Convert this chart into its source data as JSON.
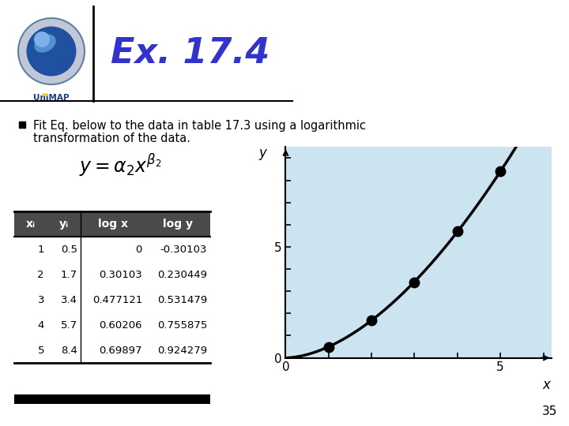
{
  "title": "Ex. 17.4",
  "title_color": "#3333cc",
  "bg_color": "#ffffff",
  "bullet_text_line1": "Fit Eq. below to the data in table 17.3 using a logarithmic",
  "bullet_text_line2": "transformation of the data.",
  "row_format_str": [
    [
      "1",
      "0.5",
      "0",
      "-0.30103"
    ],
    [
      "2",
      "1.7",
      "0.30103",
      "0.230449"
    ],
    [
      "3",
      "3.4",
      "0.477121",
      "0.531479"
    ],
    [
      "4",
      "5.7",
      "0.60206",
      "0.755875"
    ],
    [
      "5",
      "8.4",
      "0.69897",
      "0.924279"
    ]
  ],
  "data_x": [
    1,
    2,
    3,
    4,
    5
  ],
  "data_y": [
    0.5,
    1.7,
    3.4,
    5.7,
    8.4
  ],
  "plot_bg_color": "#cce4f0",
  "plot_xlim": [
    0,
    6.2
  ],
  "plot_ylim": [
    0,
    9.5
  ],
  "curve_color": "#000000",
  "dot_color": "#000000",
  "page_number": "35",
  "header_bg": "#4a4a4a",
  "header_fg": "#ffffff",
  "separator_line_color": "#000000",
  "logo_circle_color": "#1a4a9a",
  "logo_text_color": "#1a3a8a",
  "logo_yellow_color": "#f0c020"
}
